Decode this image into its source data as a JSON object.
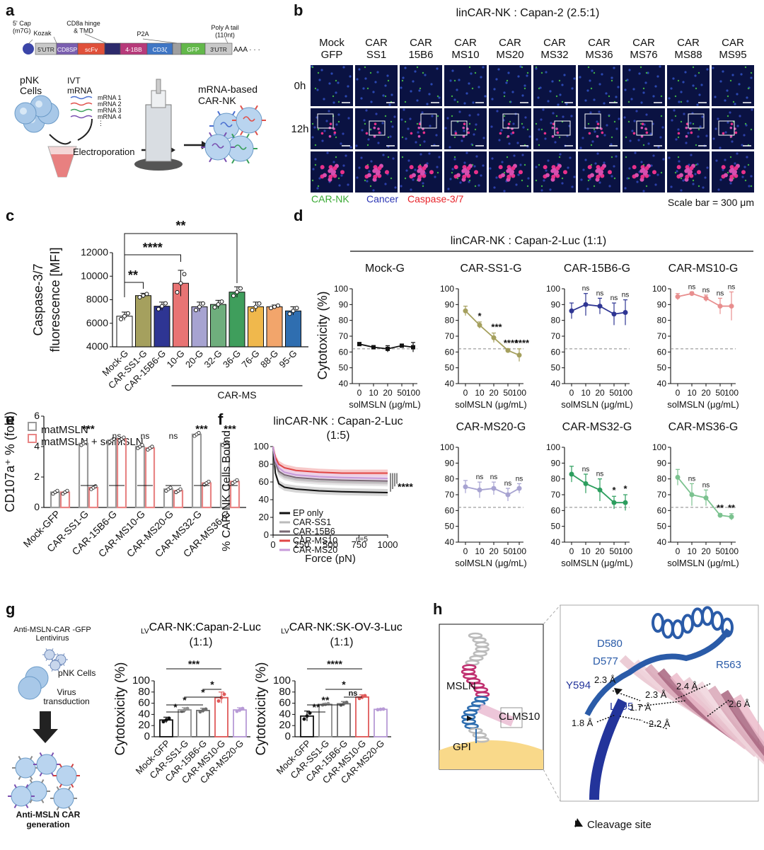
{
  "panel_labels": [
    "a",
    "b",
    "c",
    "d",
    "e",
    "f",
    "g",
    "h"
  ],
  "panel_a": {
    "construct_top_labels": [
      "5' Cap\n(m7G)",
      "Kozak",
      "CD8a hinge\n& TMD",
      "P2A",
      "Poly A tail\n(110nt)"
    ],
    "segments": [
      {
        "label": "5'UTR",
        "color": "#c9c9c9"
      },
      {
        "label": "CD8SP",
        "color": "#7b5fb0"
      },
      {
        "label": "scFv",
        "color": "#e0503a"
      },
      {
        "label": "",
        "color": "#2d2a6b"
      },
      {
        "label": "4-1BB",
        "color": "#b73a7a"
      },
      {
        "label": "CD3ζ",
        "color": "#3f76c5"
      },
      {
        "label": "",
        "color": "#9f9f9f"
      },
      {
        "label": "GFP",
        "color": "#63b84a"
      },
      {
        "label": "3'UTR",
        "color": "#c9c9c9"
      }
    ],
    "tail": "AAA · · ·",
    "pnk": "pNK\nCells",
    "ivt": "IVT\nmRNA",
    "mrna_list": [
      "mRNA 1",
      "mRNA 2",
      "mRNA 3",
      "mRNA 4",
      "⋮"
    ],
    "electroporation": "Electroporation",
    "result": "mRNA-based\nCAR-NK"
  },
  "panel_b": {
    "title": "linCAR-NK : Capan-2 (2.5:1)",
    "columns": [
      "Mock\nGFP",
      "CAR\nSS1",
      "CAR\n15B6",
      "CAR\nMS10",
      "CAR\nMS20",
      "CAR\nMS32",
      "CAR\nMS36",
      "CAR\nMS76",
      "CAR\nMS88",
      "CAR\nMS95"
    ],
    "rows": [
      "0h",
      "12h",
      ""
    ],
    "legend": [
      {
        "label": "CAR-NK",
        "color": "#3aaa35"
      },
      {
        "label": "Cancer",
        "color": "#2c36b5"
      },
      {
        "label": "Caspase-3/7",
        "color": "#e8232a"
      }
    ],
    "scale_bar": "Scale bar = 300 μm"
  },
  "chart_data": [
    {
      "panel": "c",
      "type": "bar",
      "ylabel": "Caspase-3/7\nfluorescence [MFI]",
      "ylim": [
        4000,
        12000
      ],
      "yticks": [
        4000,
        6000,
        8000,
        10000,
        12000
      ],
      "categories": [
        "Mock-G",
        "CAR-SS1-G",
        "CAR-15B6-G",
        "10-G",
        "20-G",
        "32-G",
        "36-G",
        "76-G",
        "88-G",
        "95-G"
      ],
      "group_label": "CAR-MS",
      "colors": [
        "#ffffff",
        "#a5a05e",
        "#2e3593",
        "#e87474",
        "#a7a3d1",
        "#6fae7d",
        "#3f9e5c",
        "#f0b84c",
        "#f2a56b",
        "#2f6eb0"
      ],
      "values": [
        6600,
        8350,
        7450,
        9400,
        7400,
        7600,
        8650,
        7400,
        7400,
        7050
      ],
      "errors": [
        350,
        200,
        350,
        1100,
        400,
        350,
        450,
        400,
        150,
        350
      ],
      "significance": [
        {
          "from": "Mock-G",
          "to": "CAR-SS1-G",
          "label": "**"
        },
        {
          "from": "Mock-G",
          "to": "10-G",
          "label": "****"
        },
        {
          "from": "Mock-G",
          "to": "36-G",
          "label": "**"
        }
      ]
    },
    {
      "panel": "d",
      "type": "line",
      "title": "linCAR-NK : Capan-2-Luc (1:1)",
      "ylabel": "Cytotoxicity (%)",
      "xlabel": "solMSLN (μg/mL)",
      "x": [
        0,
        10,
        20,
        50,
        100
      ],
      "ylim": [
        40,
        100
      ],
      "yticks": [
        40,
        50,
        60,
        70,
        80,
        90,
        100
      ],
      "reference_line": 62,
      "subplots": [
        {
          "name": "Mock-G",
          "color": "#111111",
          "values": [
            65,
            63,
            62,
            64,
            63
          ],
          "errors": [
            1,
            1,
            2,
            1,
            3
          ],
          "sig": [
            "",
            "",
            "",
            "",
            ""
          ]
        },
        {
          "name": "CAR-SS1-G",
          "color": "#a5a05e",
          "values": [
            86,
            77,
            69,
            61,
            58
          ],
          "errors": [
            3,
            2,
            3,
            1,
            4
          ],
          "sig": [
            "",
            "*",
            "***",
            "****",
            "****"
          ]
        },
        {
          "name": "CAR-15B6-G",
          "color": "#2e3593",
          "values": [
            86,
            90,
            89,
            84,
            85
          ],
          "errors": [
            5,
            7,
            5,
            7,
            8
          ],
          "sig": [
            "",
            "ns",
            "ns",
            "ns",
            "ns"
          ]
        },
        {
          "name": "CAR-MS10-G",
          "color": "#e88e8e",
          "values": [
            95,
            97,
            94,
            89,
            89
          ],
          "errors": [
            2,
            1,
            2,
            5,
            9
          ],
          "sig": [
            "",
            "ns",
            "ns",
            "ns",
            "ns"
          ]
        },
        {
          "name": "CAR-MS20-G",
          "color": "#a7a3d1",
          "values": [
            75,
            73,
            74,
            70,
            74
          ],
          "errors": [
            4,
            5,
            4,
            4,
            3
          ],
          "sig": [
            "",
            "ns",
            "ns",
            "ns",
            "ns"
          ]
        },
        {
          "name": "CAR-MS32-G",
          "color": "#2c9e5e",
          "values": [
            83,
            77,
            73,
            65,
            65
          ],
          "errors": [
            5,
            6,
            7,
            4,
            5
          ],
          "sig": [
            "",
            "ns",
            "ns",
            "*",
            "*"
          ]
        },
        {
          "name": "CAR-MS36-G",
          "color": "#7bc28f",
          "values": [
            81,
            70,
            68,
            57,
            56
          ],
          "errors": [
            5,
            7,
            5,
            1,
            2
          ],
          "sig": [
            "",
            "ns",
            "ns",
            "**",
            "**"
          ]
        }
      ]
    },
    {
      "panel": "e",
      "type": "bar",
      "ylabel": "CD107a⁺ % (fold)",
      "ylim": [
        0,
        6
      ],
      "yticks": [
        0,
        2,
        4,
        6
      ],
      "categories": [
        "Mock-GFP",
        "CAR-SS1-G",
        "CAR-15B6-G",
        "CAR-MS10-G",
        "CAR-MS20-G",
        "CAR-MS32-G",
        "CAR-MS36-G"
      ],
      "series": [
        {
          "name": "matMSLN",
          "color": "#9a9a9a",
          "values": [
            1.0,
            4.2,
            4.4,
            4.0,
            1.2,
            4.8,
            4.2
          ]
        },
        {
          "name": "matMSLN + solMSLN",
          "color": "#e88585",
          "values": [
            1.0,
            1.3,
            4.5,
            3.9,
            1.1,
            1.6,
            1.7
          ]
        }
      ],
      "significance": [
        "",
        "***",
        "ns",
        "ns",
        "ns",
        "***",
        "***"
      ]
    },
    {
      "panel": "f",
      "type": "line",
      "title": "linCAR-NK : Capan-2-Luc\n(1:5)",
      "xlabel": "Force (pN)",
      "ylabel": "% CAR-NK Cells Bound",
      "xlim": [
        0,
        1000
      ],
      "xticks": [
        0,
        250,
        500,
        750,
        1000
      ],
      "ylim": [
        0,
        100
      ],
      "yticks": [
        0,
        20,
        40,
        60,
        80,
        100
      ],
      "note": "n=5",
      "significance": "****",
      "series": [
        {
          "name": "EP only",
          "color": "#111111",
          "fill": "#c8c8c8",
          "values": [
            [
              0,
              100
            ],
            [
              20,
              70
            ],
            [
              50,
              58
            ],
            [
              100,
              54
            ],
            [
              200,
              52
            ],
            [
              400,
              50
            ],
            [
              600,
              49
            ],
            [
              1000,
              48
            ]
          ]
        },
        {
          "name": "CAR-SS1",
          "color": "#bbbbbb",
          "fill": "#dddddd",
          "values": [
            [
              0,
              100
            ],
            [
              20,
              80
            ],
            [
              50,
              70
            ],
            [
              100,
              66
            ],
            [
              200,
              63
            ],
            [
              400,
              61
            ],
            [
              600,
              60
            ],
            [
              1000,
              59
            ]
          ]
        },
        {
          "name": "CAR-15B6",
          "color": "#7a6a74",
          "fill": "#cfc6cb",
          "values": [
            [
              0,
              100
            ],
            [
              20,
              82
            ],
            [
              50,
              72
            ],
            [
              100,
              68
            ],
            [
              200,
              65
            ],
            [
              400,
              63
            ],
            [
              600,
              62
            ],
            [
              1000,
              61
            ]
          ]
        },
        {
          "name": "CAR-MS10",
          "color": "#e04545",
          "fill": "#f4b7b7",
          "values": [
            [
              0,
              100
            ],
            [
              20,
              88
            ],
            [
              50,
              80
            ],
            [
              100,
              76
            ],
            [
              200,
              73
            ],
            [
              400,
              71
            ],
            [
              600,
              70
            ],
            [
              1000,
              70
            ]
          ]
        },
        {
          "name": "CAR-MS20",
          "color": "#c79ad9",
          "fill": "#ead3ef",
          "values": [
            [
              0,
              100
            ],
            [
              20,
              84
            ],
            [
              50,
              76
            ],
            [
              100,
              71
            ],
            [
              200,
              68
            ],
            [
              400,
              66
            ],
            [
              600,
              65
            ],
            [
              1000,
              64
            ]
          ]
        }
      ]
    },
    {
      "panel": "g1",
      "type": "bar",
      "title": "LVCAR-NK:Capan-2-Luc\n(1:1)",
      "ylabel": "Cytotoxicity (%)",
      "ylim": [
        0,
        100
      ],
      "yticks": [
        0,
        20,
        40,
        60,
        80,
        100
      ],
      "categories": [
        "Mock-GFP",
        "CAR-SS1-G",
        "CAR-15B6-G",
        "CAR-MS10-G",
        "CAR-MS20-G"
      ],
      "colors": [
        "#111111",
        "#8e8e8e",
        "#6d6d6d",
        "#e05a5a",
        "#b79ad6"
      ],
      "values": [
        30,
        48,
        47,
        70,
        48
      ],
      "errors": [
        5,
        4,
        4,
        10,
        4
      ],
      "significance": [
        {
          "from": 0,
          "to": 1,
          "label": "*"
        },
        {
          "from": 0,
          "to": 2,
          "label": "*"
        },
        {
          "from": 1,
          "to": 3,
          "label": "*"
        },
        {
          "from": 2,
          "to": 3,
          "label": "*"
        },
        {
          "from": 0,
          "to": 3,
          "label": "***"
        }
      ]
    },
    {
      "panel": "g2",
      "type": "bar",
      "title": "LVCAR-NK:SK-OV-3-Luc\n(1:1)",
      "ylabel": "Cytotoxicity (%)",
      "ylim": [
        0,
        100
      ],
      "yticks": [
        0,
        20,
        40,
        60,
        80,
        100
      ],
      "categories": [
        "Mock-GFP",
        "CAR-SS1-G",
        "CAR-15B6-G",
        "CAR-MS10-G",
        "CAR-MS20-G"
      ],
      "colors": [
        "#111111",
        "#8e8e8e",
        "#6d6d6d",
        "#e05a5a",
        "#b79ad6"
      ],
      "values": [
        37,
        58,
        59,
        71,
        49
      ],
      "errors": [
        9,
        2,
        4,
        4,
        1
      ],
      "significance": [
        {
          "from": 0,
          "to": 1,
          "label": "**"
        },
        {
          "from": 0,
          "to": 2,
          "label": "**"
        },
        {
          "from": 2,
          "to": 3,
          "label": "ns"
        },
        {
          "from": 1,
          "to": 3,
          "label": "*"
        },
        {
          "from": 0,
          "to": 3,
          "label": "****"
        }
      ]
    }
  ],
  "panel_g": {
    "lentivirus": "Anti-MSLN-CAR -GFP\nLentivirus",
    "pnk": "pNK Cells",
    "transduction": "Virus\ntransduction",
    "generation": "Anti-MSLN CAR\ngeneration"
  },
  "panel_h": {
    "overview_labels": [
      "MSLN",
      "CLMS10",
      "GPI"
    ],
    "residues": [
      "D580",
      "D577",
      "R563",
      "Y594",
      "L595"
    ],
    "distances": [
      "2.3 Å",
      "2.4 Å",
      "2.3 Å",
      "2.6 Å",
      "1.7 Å",
      "2.2 Å",
      "1.8 Å"
    ],
    "legend": "Cleavage site"
  }
}
